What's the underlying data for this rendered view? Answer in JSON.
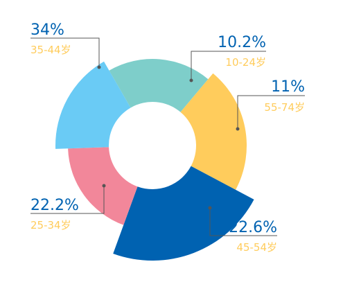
{
  "chart_data": {
    "type": "pie",
    "variant": "rose-donut",
    "title": "",
    "slices": [
      {
        "label": "10-24岁",
        "value": 10.2,
        "display": "10.2%",
        "color": "#7ECECA"
      },
      {
        "label": "55-74岁",
        "value": 11,
        "display": "11%",
        "color": "#FFCC5C"
      },
      {
        "label": "45-54岁",
        "value": 22.6,
        "display": "22.6%",
        "color": "#0062B1"
      },
      {
        "label": "25-34岁",
        "value": 22.2,
        "display": "22.2%",
        "color": "#F2879A"
      },
      {
        "label": "35-44岁",
        "value": 34,
        "display": "34%",
        "color": "#6ACBF5"
      }
    ],
    "label_colors": {
      "percent": "#0062B1",
      "age": "#FFCC5C",
      "leader": "#555555"
    }
  }
}
